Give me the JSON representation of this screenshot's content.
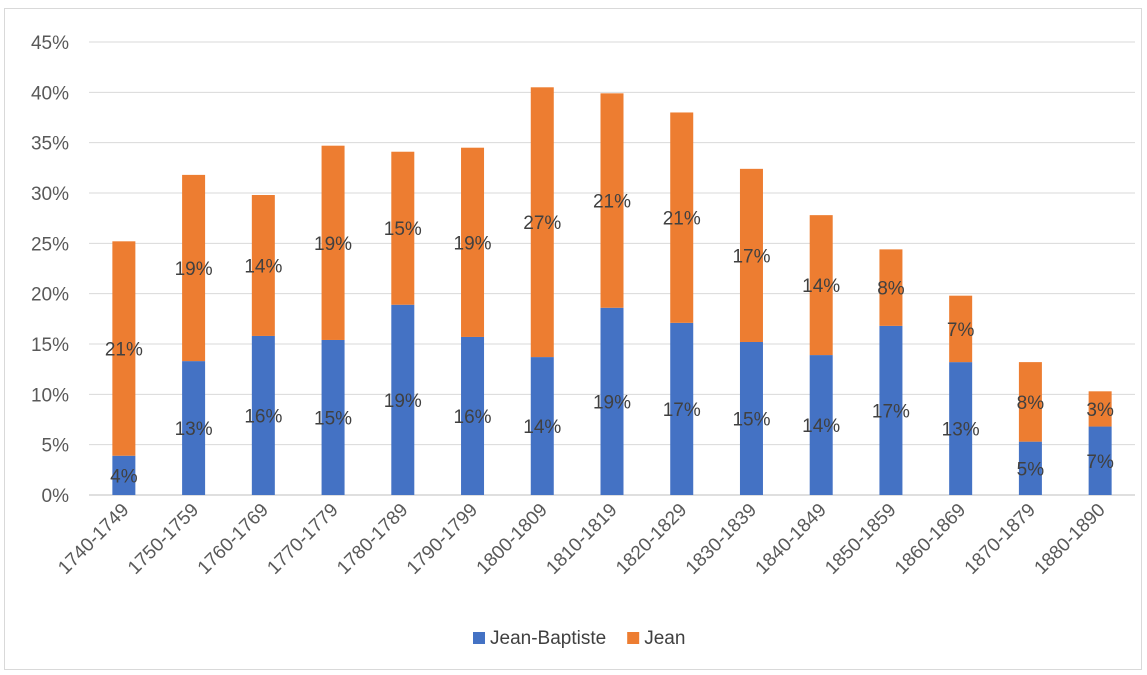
{
  "chart_data": {
    "type": "bar",
    "stacked": true,
    "categories": [
      "1740-1749",
      "1750-1759",
      "1760-1769",
      "1770-1779",
      "1780-1789",
      "1790-1799",
      "1800-1809",
      "1810-1819",
      "1820-1829",
      "1830-1839",
      "1840-1849",
      "1850-1859",
      "1860-1869",
      "1870-1879",
      "1880-1890"
    ],
    "series": [
      {
        "name": "Jean-Baptiste",
        "color": "#4472C4",
        "values": [
          3.9,
          13.3,
          15.8,
          15.4,
          18.9,
          15.7,
          13.7,
          18.6,
          17.1,
          15.2,
          13.9,
          16.8,
          13.2,
          5.3,
          6.8
        ],
        "labels": [
          "4%",
          "13%",
          "16%",
          "15%",
          "19%",
          "16%",
          "14%",
          "19%",
          "17%",
          "15%",
          "14%",
          "17%",
          "13%",
          "5%",
          "7%"
        ]
      },
      {
        "name": "Jean",
        "color": "#ED7D31",
        "values": [
          21.3,
          18.5,
          14.0,
          19.3,
          15.2,
          18.8,
          26.8,
          21.3,
          20.9,
          17.2,
          13.9,
          7.6,
          6.6,
          7.9,
          3.5
        ],
        "labels": [
          "21%",
          "19%",
          "14%",
          "19%",
          "15%",
          "19%",
          "27%",
          "21%",
          "21%",
          "17%",
          "14%",
          "8%",
          "7%",
          "8%",
          "3%"
        ]
      }
    ],
    "y_ticks": [
      "0%",
      "5%",
      "10%",
      "15%",
      "20%",
      "25%",
      "30%",
      "35%",
      "40%",
      "45%"
    ],
    "ylim": [
      0,
      45
    ],
    "grid": true,
    "legend_position": "bottom",
    "title": "",
    "xlabel": "",
    "ylabel": ""
  }
}
